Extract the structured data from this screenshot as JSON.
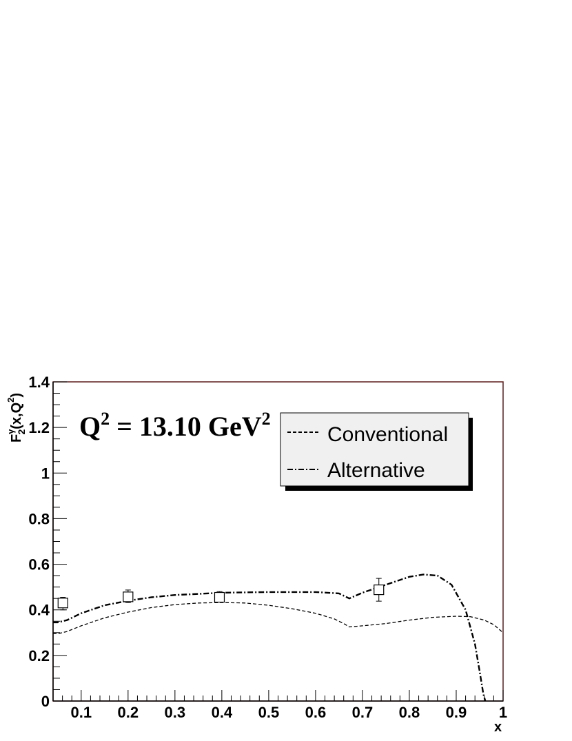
{
  "chart_data": {
    "type": "line",
    "annotation": {
      "prefix": "Q",
      "sup1": "2",
      "mid": " = 13.10 GeV",
      "sup2": "2"
    },
    "ylabel": {
      "main": "F",
      "sup": "γ",
      "sub": "2",
      "rest": "(x,Q",
      "rest_sup": "2",
      "close": ")"
    },
    "xlabel": "x",
    "xlim": [
      0.04,
      1.0
    ],
    "ylim": [
      0,
      1.4
    ],
    "x_ticks": [
      0.1,
      0.2,
      0.3,
      0.4,
      0.5,
      0.6,
      0.7,
      0.8,
      0.9,
      1
    ],
    "x_tick_labels": [
      "0.1",
      "0.2",
      "0.3",
      "0.4",
      "0.5",
      "0.6",
      "0.7",
      "0.8",
      "0.9",
      "1"
    ],
    "y_ticks": [
      0,
      0.2,
      0.4,
      0.6,
      0.8,
      1,
      1.2,
      1.4
    ],
    "y_tick_labels": [
      "0",
      "0.2",
      "0.4",
      "0.6",
      "0.8",
      "1",
      "1.2",
      "1.4"
    ],
    "grid": false,
    "legend_position": "top-right",
    "series": [
      {
        "name": "Conventional",
        "style": "dashed",
        "x": [
          0.04,
          0.05,
          0.07,
          0.1,
          0.15,
          0.2,
          0.25,
          0.3,
          0.35,
          0.4,
          0.45,
          0.5,
          0.55,
          0.6,
          0.64,
          0.66,
          0.672,
          0.7,
          0.75,
          0.8,
          0.85,
          0.9,
          0.93,
          0.96,
          0.98,
          1.0
        ],
        "y": [
          0.295,
          0.295,
          0.305,
          0.33,
          0.365,
          0.39,
          0.41,
          0.423,
          0.43,
          0.432,
          0.43,
          0.42,
          0.405,
          0.385,
          0.36,
          0.34,
          0.325,
          0.33,
          0.34,
          0.355,
          0.367,
          0.372,
          0.37,
          0.355,
          0.335,
          0.3
        ]
      },
      {
        "name": "Alternative",
        "style": "dash-dot",
        "x": [
          0.04,
          0.05,
          0.07,
          0.1,
          0.15,
          0.2,
          0.25,
          0.3,
          0.35,
          0.4,
          0.5,
          0.6,
          0.65,
          0.672,
          0.7,
          0.75,
          0.8,
          0.83,
          0.86,
          0.89,
          0.92,
          0.94,
          0.95,
          0.958,
          0.962
        ],
        "y": [
          0.345,
          0.345,
          0.355,
          0.385,
          0.42,
          0.44,
          0.455,
          0.465,
          0.47,
          0.475,
          0.478,
          0.478,
          0.472,
          0.45,
          0.475,
          0.51,
          0.545,
          0.555,
          0.55,
          0.51,
          0.4,
          0.25,
          0.13,
          0.03,
          0
        ]
      }
    ],
    "data_points": {
      "marker": "open-square",
      "x": [
        0.061,
        0.2,
        0.395,
        0.735
      ],
      "y": [
        0.43,
        0.457,
        0.455,
        0.488
      ],
      "err_low": [
        0.03,
        0.025,
        0.02,
        0.05
      ],
      "err_high": [
        0.025,
        0.03,
        0.025,
        0.05
      ]
    }
  }
}
